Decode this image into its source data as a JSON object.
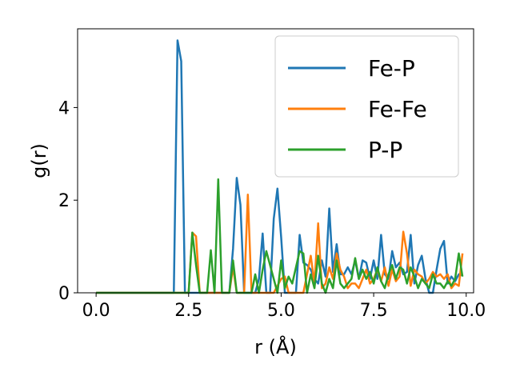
{
  "chart_data": {
    "type": "line",
    "xlabel": "r (Å)",
    "ylabel": "g(r)",
    "xlim": [
      -0.5,
      10.2
    ],
    "ylim": [
      0,
      5.7
    ],
    "xticks": [
      0.0,
      2.5,
      5.0,
      7.5,
      10.0
    ],
    "xtick_labels": [
      "0.0",
      "2.5",
      "5.0",
      "7.5",
      "10.0"
    ],
    "yticks": [
      0,
      2,
      4
    ],
    "ytick_labels": [
      "0",
      "2",
      "4"
    ],
    "grid": false,
    "legend_position": "top-right",
    "series": [
      {
        "name": "Fe-P",
        "color": "#1f77b4",
        "x": [
          0,
          1.5,
          2.1,
          2.2,
          2.3,
          2.4,
          3.6,
          3.7,
          3.8,
          3.9,
          4.0,
          4.3,
          4.4,
          4.5,
          4.6,
          4.7,
          4.8,
          4.9,
          5.0,
          5.1,
          5.4,
          5.5,
          5.6,
          5.7,
          5.8,
          5.9,
          6.0,
          6.1,
          6.2,
          6.3,
          6.4,
          6.5,
          6.6,
          6.7,
          6.8,
          6.9,
          7.0,
          7.1,
          7.2,
          7.3,
          7.4,
          7.5,
          7.6,
          7.7,
          7.8,
          7.9,
          8.0,
          8.1,
          8.2,
          8.3,
          8.4,
          8.5,
          8.6,
          8.7,
          8.8,
          8.9,
          9.0,
          9.1,
          9.2,
          9.3,
          9.4,
          9.5,
          9.6,
          9.7,
          9.8,
          9.9
        ],
        "y": [
          0,
          0,
          0,
          5.45,
          5.0,
          0,
          0,
          0.95,
          2.48,
          1.9,
          0,
          0,
          0.3,
          1.28,
          0,
          0,
          1.6,
          2.25,
          1.2,
          0,
          0,
          1.25,
          0.65,
          0.6,
          0.5,
          0.3,
          0.2,
          0.7,
          0.35,
          1.82,
          0.45,
          1.05,
          0.4,
          0.4,
          0.55,
          0.4,
          0.7,
          0.3,
          0.7,
          0.65,
          0.3,
          0.7,
          0.3,
          1.25,
          0.4,
          0.3,
          0.9,
          0.55,
          0.65,
          0.4,
          0.45,
          1.25,
          0.2,
          0.6,
          0.8,
          0.3,
          0,
          0,
          0.5,
          0.95,
          1.12,
          0.2,
          0.35,
          0.25,
          0.4,
          0.38
        ]
      },
      {
        "name": "Fe-Fe",
        "color": "#ff7f0e",
        "x": [
          0,
          2.4,
          2.5,
          2.6,
          2.7,
          2.8,
          3.6,
          3.7,
          3.8,
          4.0,
          4.1,
          4.2,
          4.8,
          4.9,
          5.0,
          5.1,
          5.2,
          5.6,
          5.7,
          5.8,
          5.9,
          6.0,
          6.1,
          6.2,
          6.3,
          6.4,
          6.5,
          6.6,
          6.7,
          6.8,
          6.9,
          7.0,
          7.1,
          7.2,
          7.3,
          7.4,
          7.5,
          7.6,
          7.7,
          7.8,
          7.9,
          8.0,
          8.1,
          8.2,
          8.3,
          8.4,
          8.5,
          8.6,
          8.7,
          8.8,
          8.9,
          9.0,
          9.1,
          9.2,
          9.3,
          9.4,
          9.5,
          9.6,
          9.7,
          9.8,
          9.9
        ],
        "y": [
          0,
          0,
          0,
          1.3,
          1.22,
          0,
          0,
          0.55,
          0,
          0,
          2.12,
          0,
          0,
          0.15,
          0.3,
          0.35,
          0,
          0,
          0.4,
          0.8,
          0.2,
          1.5,
          0.1,
          0.2,
          0.55,
          0.3,
          0.85,
          0.5,
          0.35,
          0.1,
          0.2,
          0.2,
          0.1,
          0.3,
          0.5,
          0.2,
          0.3,
          0.5,
          0.25,
          0.55,
          0.15,
          0.5,
          0.25,
          0.35,
          1.32,
          0.85,
          0.15,
          0.5,
          0.4,
          0.35,
          0.2,
          0.3,
          0.45,
          0.35,
          0.4,
          0.3,
          0.4,
          0.1,
          0.2,
          0.15,
          0.85
        ]
      },
      {
        "name": "P-P",
        "color": "#2ca02c",
        "x": [
          0,
          2.4,
          2.5,
          2.6,
          2.7,
          2.8,
          3.0,
          3.1,
          3.2,
          3.3,
          3.4,
          3.6,
          3.7,
          3.8,
          4.2,
          4.3,
          4.4,
          4.5,
          4.6,
          4.9,
          5.0,
          5.1,
          5.2,
          5.3,
          5.4,
          5.5,
          5.6,
          5.7,
          5.8,
          5.9,
          6.0,
          6.1,
          6.2,
          6.3,
          6.4,
          6.5,
          6.6,
          6.7,
          6.8,
          6.9,
          7.0,
          7.1,
          7.2,
          7.3,
          7.4,
          7.5,
          7.6,
          7.7,
          7.8,
          7.9,
          8.0,
          8.1,
          8.2,
          8.3,
          8.4,
          8.5,
          8.6,
          8.7,
          8.8,
          8.9,
          9.0,
          9.1,
          9.2,
          9.3,
          9.4,
          9.5,
          9.6,
          9.7,
          9.8,
          9.9
        ],
        "y": [
          0,
          0,
          0,
          1.3,
          0.6,
          0,
          0,
          0.92,
          0,
          2.45,
          0,
          0,
          0.7,
          0,
          0,
          0.4,
          0,
          0.5,
          0.9,
          0,
          0.7,
          0.1,
          0.35,
          0.2,
          0.55,
          0.9,
          0.85,
          0,
          0.4,
          0.1,
          0.8,
          0.2,
          0,
          0.3,
          0.1,
          0.7,
          0.2,
          0.1,
          0.2,
          0.3,
          0.75,
          0.3,
          0.5,
          0.3,
          0.45,
          0.2,
          0.55,
          0.25,
          0.1,
          0.4,
          0.6,
          0.3,
          0.55,
          0.5,
          0.2,
          0.55,
          0.35,
          0.1,
          0.3,
          0.2,
          0.1,
          0.4,
          0.2,
          0.2,
          0.1,
          0.25,
          0.15,
          0.3,
          0.85,
          0.35
        ]
      }
    ]
  }
}
